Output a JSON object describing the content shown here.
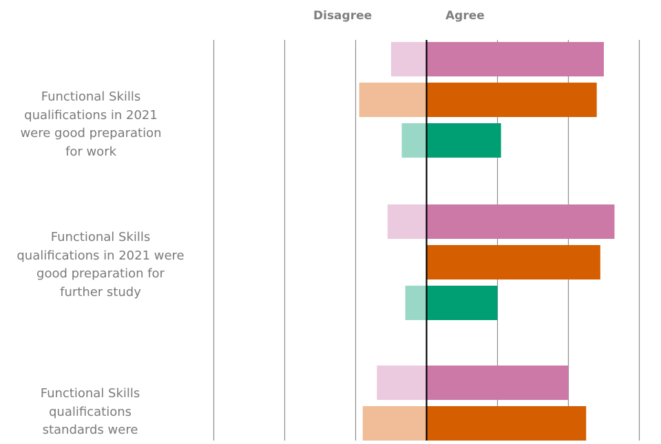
{
  "chart_data": {
    "type": "bar",
    "orientation": "horizontal-diverging",
    "header_left": "Disagree",
    "header_right": "Agree",
    "categories": [
      [
        "Functional Skills",
        "qualifications in 2021",
        "were good preparation",
        "for work"
      ],
      [
        "Functional Skills",
        "qualifications in 2021 were",
        "good preparation for",
        "further study"
      ],
      [
        "Functional Skills",
        "qualifications",
        "standards were"
      ]
    ],
    "series": [
      {
        "agree": [
          25,
          26.5,
          20
        ],
        "disagree": [
          5,
          5.5,
          7
        ],
        "color": "#cc79a7",
        "light_color": "#ebc9df"
      },
      {
        "agree": [
          24,
          24.5,
          22.5
        ],
        "disagree": [
          9.5,
          0,
          9
        ],
        "color": "#d55e00",
        "light_color": "#f0bd98"
      },
      {
        "agree": [
          10.5,
          10,
          null
        ],
        "disagree": [
          3.5,
          3,
          null
        ],
        "color": "#009e73",
        "light_color": "#99d8c7"
      }
    ],
    "xlim": [
      -30,
      30
    ],
    "grid": true
  }
}
